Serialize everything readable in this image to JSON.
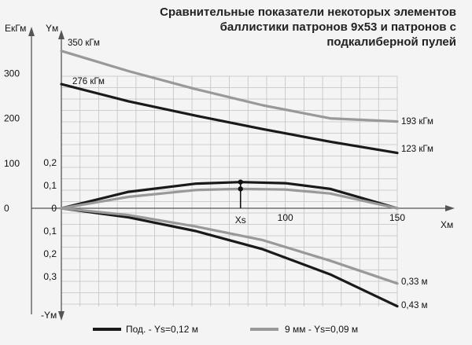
{
  "chart_data": {
    "type": "line",
    "title_lines": [
      "Сравнительные показатели некоторых элементов",
      "баллистики патронов 9x53 и патронов с",
      "подкалиберной пулей"
    ],
    "energy_axis": {
      "label": "ЕкГм",
      "ticks": [
        {
          "value": 0,
          "label": "0"
        },
        {
          "value": 100,
          "label": "100"
        },
        {
          "value": 200,
          "label": "200"
        },
        {
          "value": 300,
          "label": "300"
        }
      ]
    },
    "y_axis": {
      "label_top": "Yм",
      "label_bottom": "-Yм",
      "ticks": [
        {
          "value": 0.2,
          "label": "0,2"
        },
        {
          "value": 0.1,
          "label": "0,1"
        },
        {
          "value": 0,
          "label": "0"
        },
        {
          "value": -0.1,
          "label": "0,1"
        },
        {
          "value": -0.2,
          "label": "0,2"
        },
        {
          "value": -0.3,
          "label": "0,3"
        }
      ]
    },
    "x_axis": {
      "label": "Xм",
      "xlim": [
        0,
        150
      ],
      "ticks": [
        {
          "value": 100,
          "label": "100"
        },
        {
          "value": 150,
          "label": "150"
        }
      ],
      "xs_label": "Xs",
      "xs_value": 80
    },
    "energy_series": [
      {
        "color": "#1a1a1a",
        "x": [
          0,
          30,
          60,
          90,
          120,
          150
        ],
        "y": [
          276,
          238,
          206,
          176,
          148,
          123
        ]
      },
      {
        "color": "#999999",
        "x": [
          0,
          30,
          60,
          90,
          120,
          150
        ],
        "y": [
          350,
          305,
          265,
          229,
          200,
          193
        ]
      }
    ],
    "trajectory_series": [
      {
        "color": "#1a1a1a",
        "x": [
          0,
          30,
          60,
          80,
          100,
          120,
          150
        ],
        "y": [
          0,
          0.072,
          0.108,
          0.115,
          0.11,
          0.085,
          0
        ]
      },
      {
        "color": "#999999",
        "x": [
          0,
          30,
          60,
          80,
          100,
          120,
          150
        ],
        "y": [
          0,
          0.05,
          0.08,
          0.085,
          0.082,
          0.065,
          0
        ]
      }
    ],
    "drop_series": [
      {
        "color": "#1a1a1a",
        "x": [
          0,
          30,
          60,
          90,
          120,
          150
        ],
        "y": [
          0,
          -0.04,
          -0.1,
          -0.18,
          -0.29,
          -0.43
        ]
      },
      {
        "color": "#999999",
        "x": [
          0,
          30,
          60,
          90,
          120,
          150
        ],
        "y": [
          0,
          -0.03,
          -0.08,
          -0.14,
          -0.23,
          -0.33
        ]
      }
    ],
    "annotations": {
      "e_black_start": "276 кГм",
      "e_grey_start": "350 кГм",
      "e_black_end": "123 кГм",
      "e_grey_end": "193 кГм",
      "drop_black_end": "0,43 м",
      "drop_grey_end": "0,33 м"
    },
    "legend": {
      "position": "bottom",
      "items": [
        {
          "label": "Под. - Ys=0,12 м",
          "color": "#1a1a1a"
        },
        {
          "label": "9 мм - Ys=0,09 м",
          "color": "#999999"
        }
      ]
    }
  }
}
